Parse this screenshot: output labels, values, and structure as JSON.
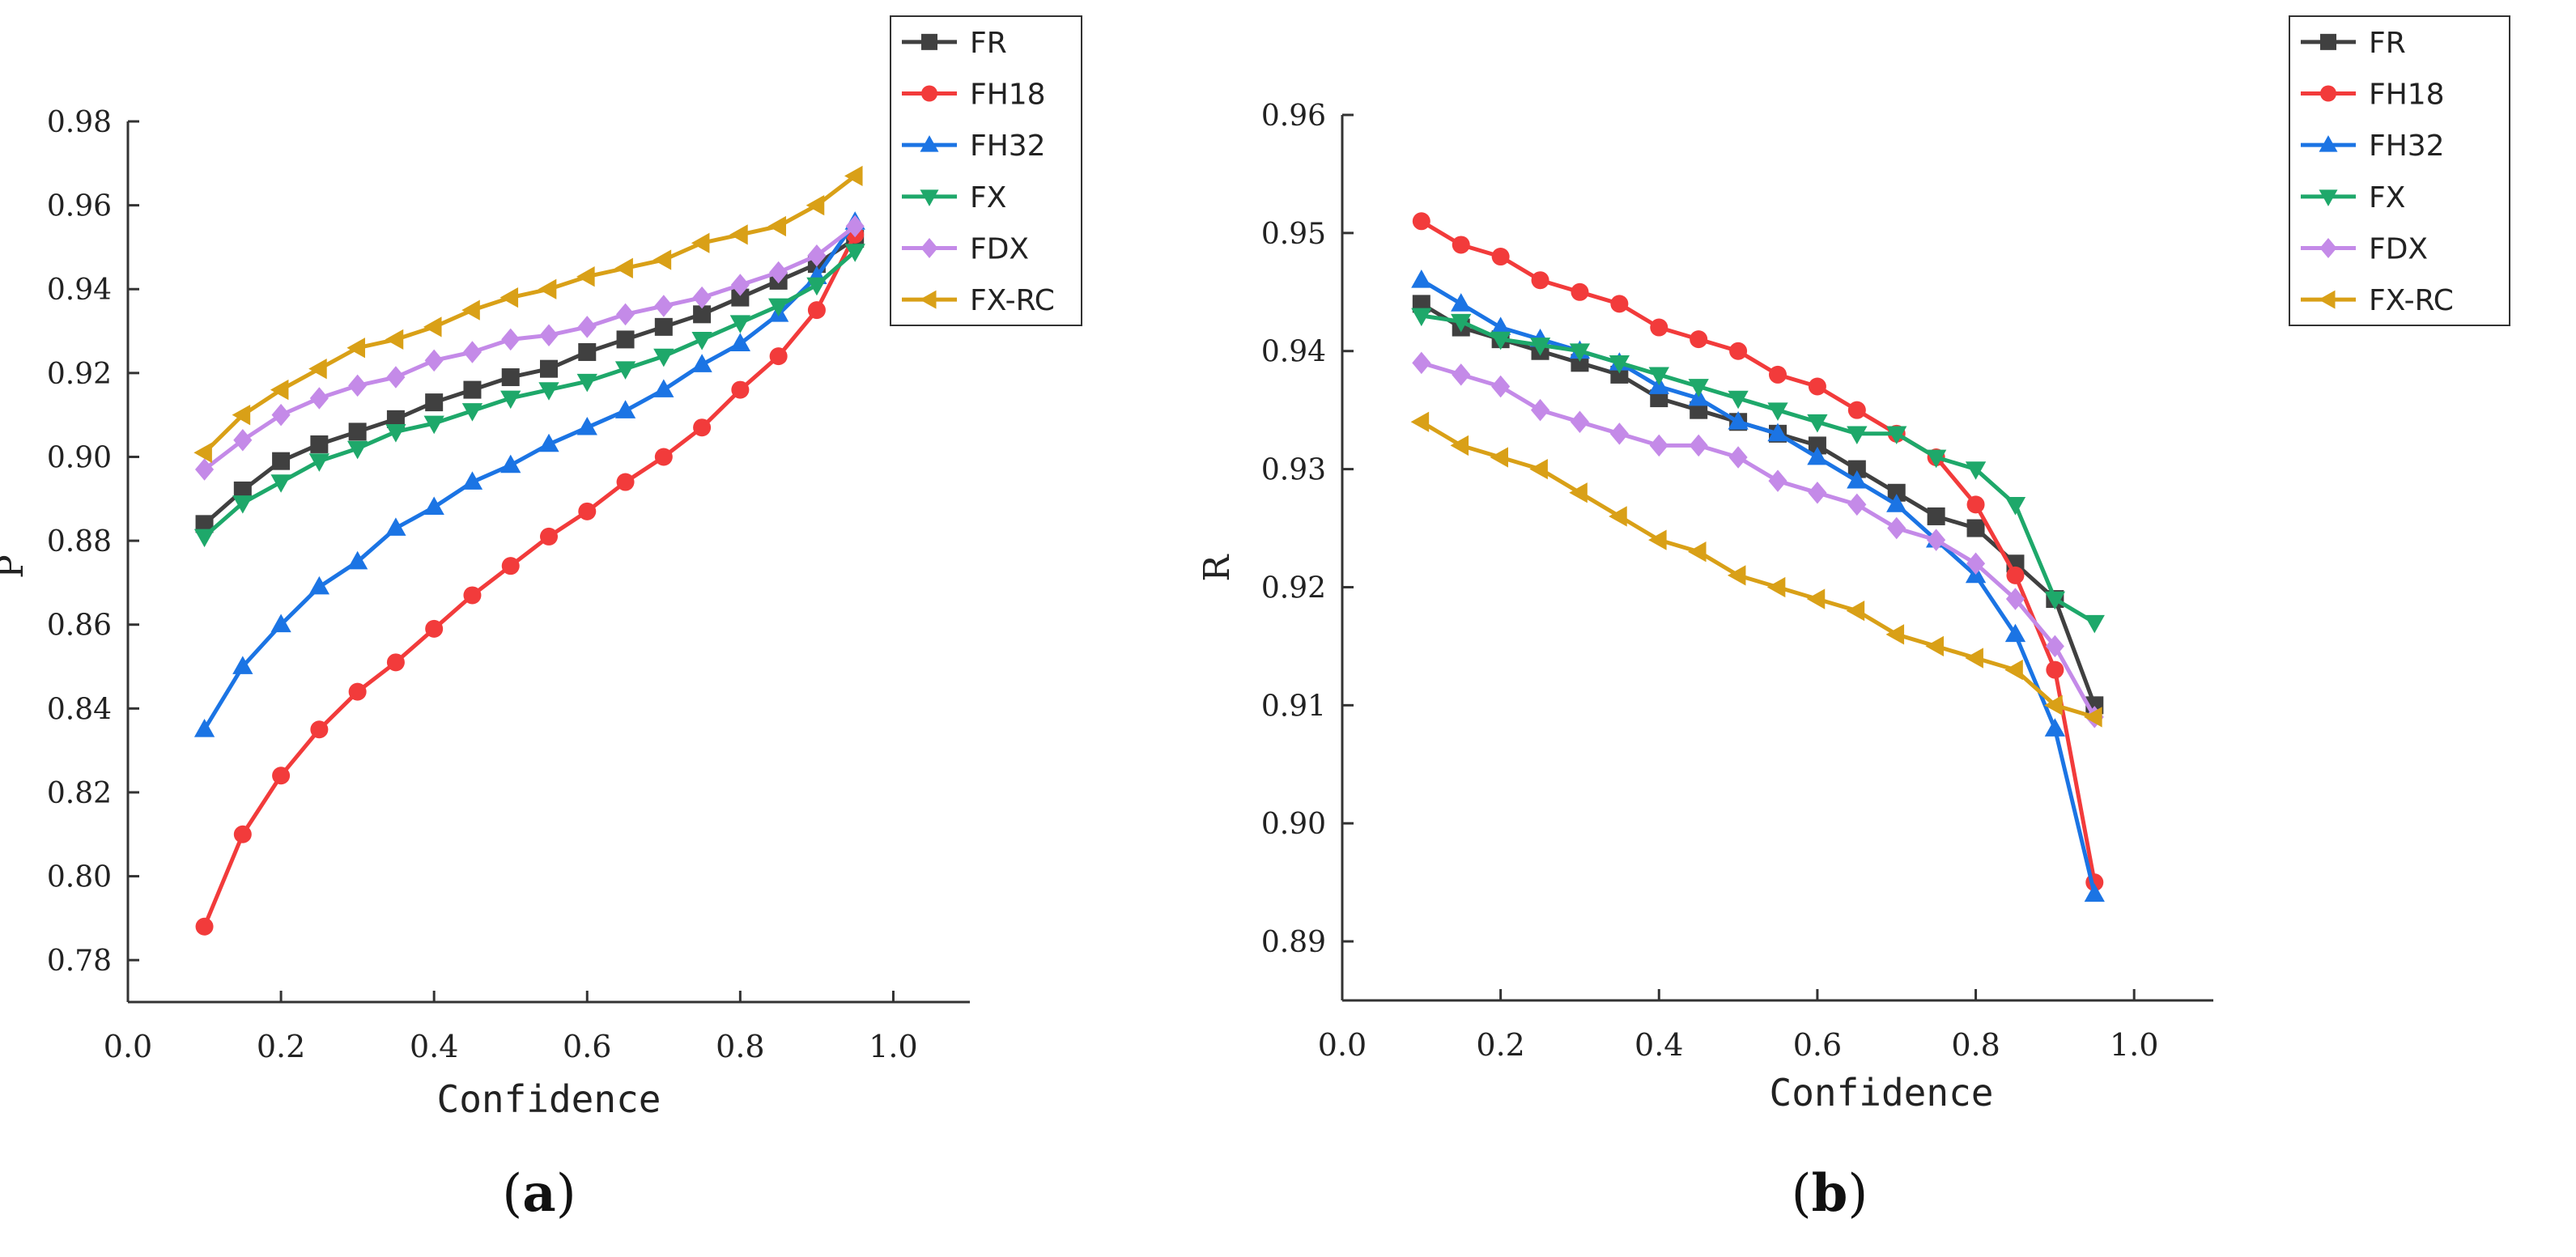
{
  "colors": {
    "FR": "#404040",
    "FH18": "#f23b3b",
    "FH32": "#1b74e4",
    "FX": "#1ea86a",
    "FDX": "#c48ae8",
    "FX-RC": "#d9a017",
    "axis": "#333333",
    "text": "#222222"
  },
  "series_styles": {
    "FR": "square",
    "FH18": "circle",
    "FH32": "triangle-up",
    "FX": "triangle-down",
    "FDX": "diamond",
    "FX-RC": "triangle-left"
  },
  "chart_data": [
    {
      "panel": "(a)",
      "panel_letter": "a",
      "type": "line",
      "xlabel": "Confidence",
      "ylabel": "P",
      "xlim": [
        0.0,
        1.1
      ],
      "ylim": [
        0.77,
        0.98
      ],
      "xticks": [
        0.0,
        0.2,
        0.4,
        0.6,
        0.8,
        1.0
      ],
      "xtick_labels": [
        "0.0",
        "0.2",
        "0.4",
        "0.6",
        "0.8",
        "1.0"
      ],
      "yticks": [
        0.78,
        0.8,
        0.82,
        0.84,
        0.86,
        0.88,
        0.9,
        0.92,
        0.94,
        0.96,
        0.98
      ],
      "ytick_labels": [
        "0.78",
        "0.80",
        "0.82",
        "0.84",
        "0.86",
        "0.88",
        "0.90",
        "0.92",
        "0.94",
        "0.96",
        "0.98"
      ],
      "legend_position": "top-right",
      "x": [
        0.1,
        0.15,
        0.2,
        0.25,
        0.3,
        0.35,
        0.4,
        0.45,
        0.5,
        0.55,
        0.6,
        0.65,
        0.7,
        0.75,
        0.8,
        0.85,
        0.9,
        0.95
      ],
      "series": [
        {
          "name": "FR",
          "values": [
            0.884,
            0.892,
            0.899,
            0.903,
            0.906,
            0.909,
            0.913,
            0.916,
            0.919,
            0.921,
            0.925,
            0.928,
            0.931,
            0.934,
            0.938,
            0.942,
            0.946,
            0.952
          ]
        },
        {
          "name": "FH18",
          "values": [
            0.788,
            0.81,
            0.824,
            0.835,
            0.844,
            0.851,
            0.859,
            0.867,
            0.874,
            0.881,
            0.887,
            0.894,
            0.9,
            0.907,
            0.916,
            0.924,
            0.935,
            0.953
          ]
        },
        {
          "name": "FH32",
          "values": [
            0.835,
            0.85,
            0.86,
            0.869,
            0.875,
            0.883,
            0.888,
            0.894,
            0.898,
            0.903,
            0.907,
            0.911,
            0.916,
            0.922,
            0.927,
            0.934,
            0.943,
            0.956
          ]
        },
        {
          "name": "FX",
          "values": [
            0.881,
            0.889,
            0.894,
            0.899,
            0.902,
            0.906,
            0.908,
            0.911,
            0.914,
            0.916,
            0.918,
            0.921,
            0.924,
            0.928,
            0.932,
            0.936,
            0.941,
            0.949
          ]
        },
        {
          "name": "FDX",
          "values": [
            0.897,
            0.904,
            0.91,
            0.914,
            0.917,
            0.919,
            0.923,
            0.925,
            0.928,
            0.929,
            0.931,
            0.934,
            0.936,
            0.938,
            0.941,
            0.944,
            0.948,
            0.955
          ]
        },
        {
          "name": "FX-RC",
          "values": [
            0.901,
            0.91,
            0.916,
            0.921,
            0.926,
            0.928,
            0.931,
            0.935,
            0.938,
            0.94,
            0.943,
            0.945,
            0.947,
            0.951,
            0.953,
            0.955,
            0.96,
            0.967
          ]
        }
      ]
    },
    {
      "panel": "(b)",
      "panel_letter": "b",
      "type": "line",
      "xlabel": "Confidence",
      "ylabel": "R",
      "xlim": [
        0.0,
        1.1
      ],
      "ylim": [
        0.885,
        0.96
      ],
      "xticks": [
        0.0,
        0.2,
        0.4,
        0.6,
        0.8,
        1.0
      ],
      "xtick_labels": [
        "0.0",
        "0.2",
        "0.4",
        "0.6",
        "0.8",
        "1.0"
      ],
      "yticks": [
        0.89,
        0.9,
        0.91,
        0.92,
        0.93,
        0.94,
        0.95,
        0.96
      ],
      "ytick_labels": [
        "0.89",
        "0.90",
        "0.91",
        "0.92",
        "0.93",
        "0.94",
        "0.95",
        "0.96"
      ],
      "legend_position": "top-right",
      "x": [
        0.1,
        0.15,
        0.2,
        0.25,
        0.3,
        0.35,
        0.4,
        0.45,
        0.5,
        0.55,
        0.6,
        0.65,
        0.7,
        0.75,
        0.8,
        0.85,
        0.9,
        0.95
      ],
      "series": [
        {
          "name": "FR",
          "values": [
            0.944,
            0.942,
            0.941,
            0.94,
            0.939,
            0.938,
            0.936,
            0.935,
            0.934,
            0.933,
            0.932,
            0.93,
            0.928,
            0.926,
            0.925,
            0.922,
            0.919,
            0.91
          ]
        },
        {
          "name": "FH18",
          "values": [
            0.951,
            0.949,
            0.948,
            0.946,
            0.945,
            0.944,
            0.942,
            0.941,
            0.94,
            0.938,
            0.937,
            0.935,
            0.933,
            0.931,
            0.927,
            0.921,
            0.913,
            0.895
          ]
        },
        {
          "name": "FH32",
          "values": [
            0.946,
            0.944,
            0.942,
            0.941,
            0.94,
            0.939,
            0.937,
            0.936,
            0.934,
            0.933,
            0.931,
            0.929,
            0.927,
            0.924,
            0.921,
            0.916,
            0.908,
            0.894
          ]
        },
        {
          "name": "FX",
          "values": [
            0.943,
            0.9425,
            0.941,
            0.9405,
            0.94,
            0.939,
            0.938,
            0.937,
            0.936,
            0.935,
            0.934,
            0.933,
            0.933,
            0.931,
            0.93,
            0.927,
            0.919,
            0.917
          ]
        },
        {
          "name": "FDX",
          "values": [
            0.939,
            0.938,
            0.937,
            0.935,
            0.934,
            0.933,
            0.932,
            0.932,
            0.931,
            0.929,
            0.928,
            0.927,
            0.925,
            0.924,
            0.922,
            0.919,
            0.915,
            0.909
          ]
        },
        {
          "name": "FX-RC",
          "values": [
            0.934,
            0.932,
            0.931,
            0.93,
            0.928,
            0.926,
            0.924,
            0.923,
            0.921,
            0.92,
            0.919,
            0.918,
            0.916,
            0.915,
            0.914,
            0.913,
            0.91,
            0.909
          ]
        }
      ]
    }
  ]
}
